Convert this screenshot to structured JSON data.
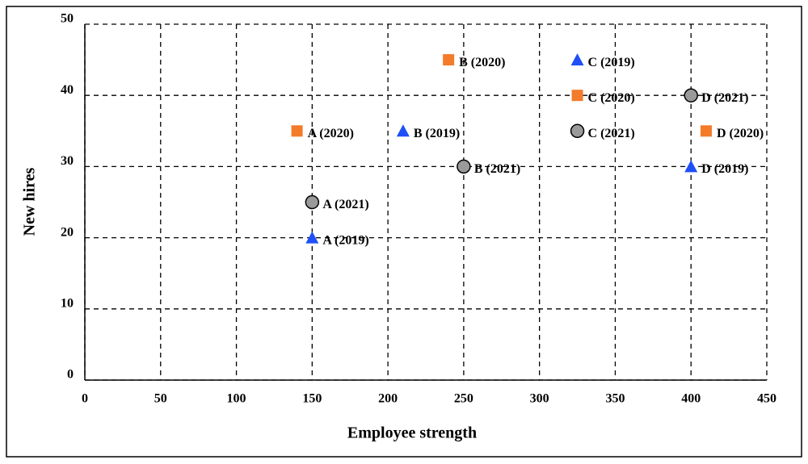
{
  "chart_data": {
    "type": "scatter",
    "x_label": "Employee strength",
    "y_label": "New hires",
    "xlim": [
      0,
      450
    ],
    "xticks": [
      0,
      50,
      100,
      150,
      200,
      250,
      300,
      350,
      400,
      450
    ],
    "ylim": [
      0,
      50
    ],
    "yticks": [
      0,
      10,
      20,
      30,
      40,
      50
    ],
    "grid": true,
    "series": [
      {
        "color": "#1f4ff5",
        "marker": "triangle",
        "x": [
          150,
          210,
          325,
          400
        ],
        "values": [
          20,
          35,
          45,
          30
        ],
        "labels": [
          "A (2019)",
          "B (2019)",
          "C (2019)",
          "D (2019)"
        ]
      },
      {
        "color": "#f47b2a",
        "marker": "square",
        "x": [
          140,
          240,
          325,
          410
        ],
        "values": [
          35,
          45,
          40,
          35
        ],
        "labels": [
          "A (2020)",
          "B (2020)",
          "C (2020)",
          "D (2020)"
        ]
      },
      {
        "color": "#9a9a9a",
        "marker": "circle",
        "x": [
          150,
          250,
          325,
          400
        ],
        "values": [
          25,
          30,
          35,
          40
        ],
        "labels": [
          "A (2021)",
          "B (2021)",
          "C (2021)",
          "D (2021)"
        ]
      }
    ]
  }
}
